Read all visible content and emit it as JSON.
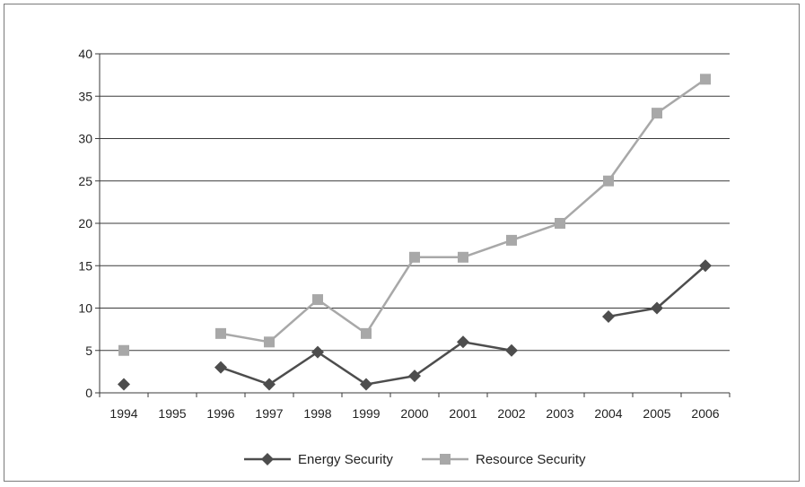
{
  "chart_data": {
    "type": "line",
    "title": "",
    "xlabel": "",
    "ylabel": "",
    "categories": [
      "1994",
      "1995",
      "1996",
      "1997",
      "1998",
      "1999",
      "2000",
      "2001",
      "2002",
      "2003",
      "2004",
      "2005",
      "2006"
    ],
    "ylim": [
      0,
      40
    ],
    "yticks": [
      0,
      5,
      10,
      15,
      20,
      25,
      30,
      35,
      40
    ],
    "grid": "horizontal",
    "legend_position": "bottom",
    "series": [
      {
        "name": "Energy Security",
        "marker": "diamond",
        "color": "#4d4d4d",
        "values": [
          1,
          null,
          3,
          1,
          4.8,
          1,
          2,
          6,
          5,
          null,
          9,
          10,
          15
        ]
      },
      {
        "name": "Resource Security",
        "marker": "square",
        "color": "#a8a8a8",
        "values": [
          5,
          null,
          7,
          6,
          11,
          7,
          16,
          16,
          18,
          20,
          25,
          33,
          37
        ]
      }
    ]
  }
}
